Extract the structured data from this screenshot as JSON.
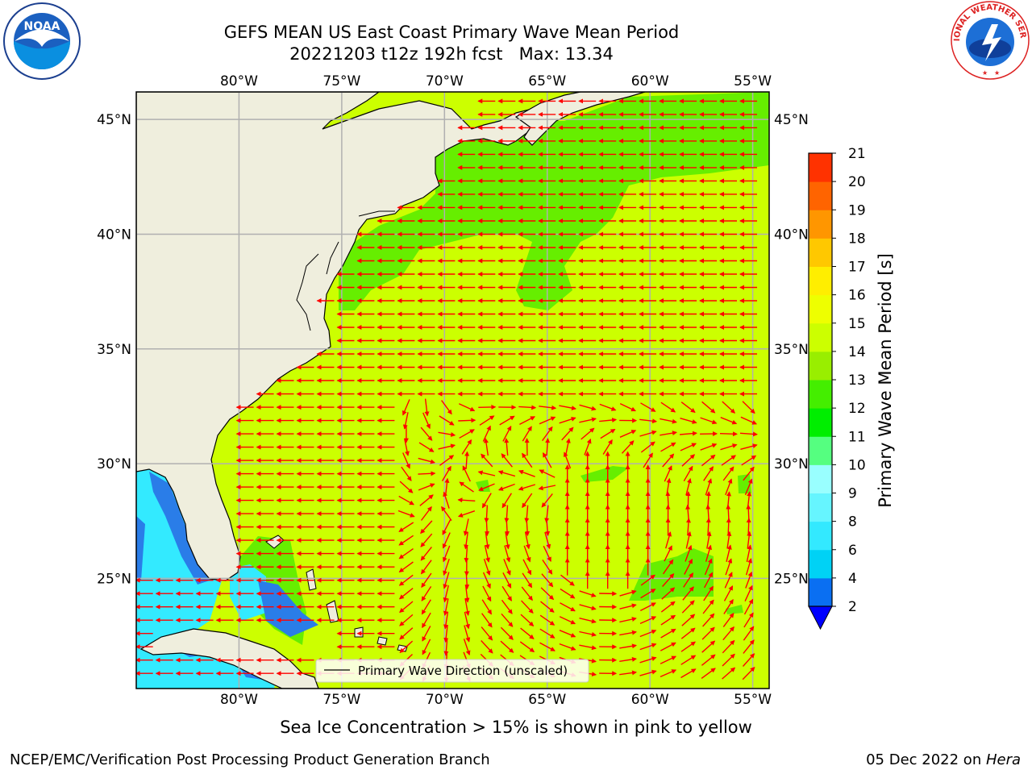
{
  "title_line1": "GEFS MEAN US East Coast Primary Wave Mean Period",
  "title_line2": "20221203 t12z 192h fcst   Max: 13.34",
  "lon_ticks": [
    {
      "lon": -80,
      "label": "80°W"
    },
    {
      "lon": -75,
      "label": "75°W"
    },
    {
      "lon": -70,
      "label": "70°W"
    },
    {
      "lon": -65,
      "label": "65°W"
    },
    {
      "lon": -60,
      "label": "60°W"
    },
    {
      "lon": -55,
      "label": "55°W"
    }
  ],
  "lat_ticks": [
    {
      "lat": 45,
      "label": "45°N"
    },
    {
      "lat": 40,
      "label": "40°N"
    },
    {
      "lat": 35,
      "label": "35°N"
    },
    {
      "lat": 30,
      "label": "30°N"
    },
    {
      "lat": 25,
      "label": "25°N"
    }
  ],
  "extent": {
    "lon_min": -85,
    "lon_max": -54.2,
    "lat_min": 20.2,
    "lat_max": 46.2
  },
  "legend_label": "Primary Wave Direction (unscaled)",
  "colorbar": {
    "label": "Primary Wave Mean Period [s]",
    "ticks": [
      "2",
      "4",
      "6",
      "8",
      "9",
      "10",
      "11",
      "12",
      "13",
      "14",
      "15",
      "16",
      "17",
      "18",
      "19",
      "20",
      "21"
    ],
    "colors": [
      "#0a6ff2",
      "#00d2f5",
      "#33e9ff",
      "#66f5ff",
      "#99ffff",
      "#55ff80",
      "#00ee00",
      "#44ee00",
      "#99ee00",
      "#ccff00",
      "#eeff00",
      "#ffee00",
      "#ffc800",
      "#ff9600",
      "#ff6400",
      "#ff3200",
      "#ff0000"
    ],
    "extend_color": "#0000ff"
  },
  "colors": {
    "land": "#efeedd",
    "sea_main": "#ccff00",
    "sea_green": "#66ee00",
    "sea_blue": "#33eaff",
    "sea_darkblue": "#2a7de8",
    "arrow": "#ff0000",
    "grid": "#b0b0b0"
  },
  "sea_ice_note": "Sea Ice Concentration > 15% is shown in pink to yellow",
  "footer_left": "NCEP/EMC/Verification Post Processing Product Generation Branch",
  "footer_right_text": "05 Dec 2022 on ",
  "footer_right_host": "Hera",
  "logo_left": "NOAA",
  "logo_right": "NATIONAL WEATHER SERVICE"
}
